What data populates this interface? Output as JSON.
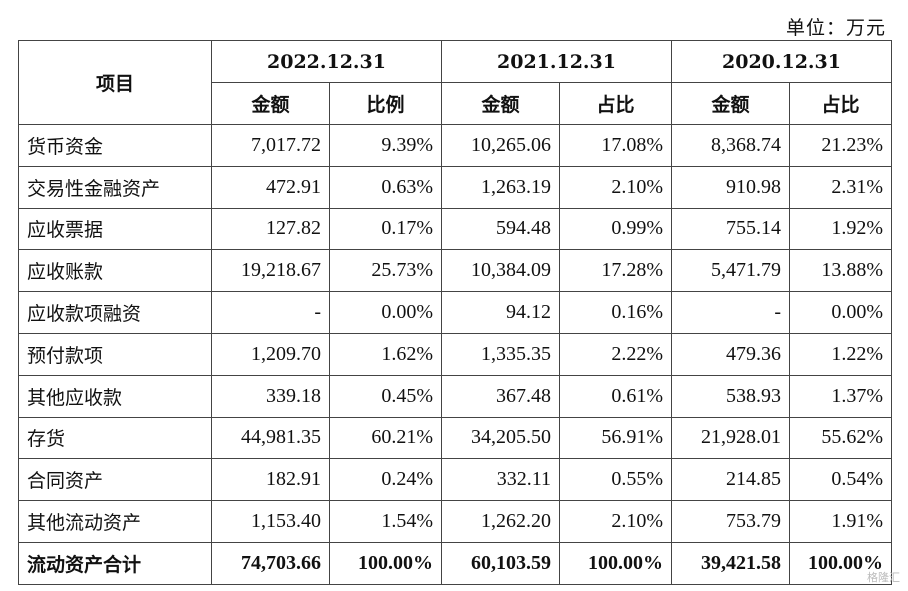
{
  "unit_label": "单位：万元",
  "header": {
    "item": "项目",
    "periods": [
      "2022.12.31",
      "2021.12.31",
      "2020.12.31"
    ],
    "sub": [
      "金额",
      "比例",
      "金额",
      "占比",
      "金额",
      "占比"
    ]
  },
  "rows": [
    {
      "name": "货币资金",
      "v": [
        "7,017.72",
        "9.39%",
        "10,265.06",
        "17.08%",
        "8,368.74",
        "21.23%"
      ]
    },
    {
      "name": "交易性金融资产",
      "v": [
        "472.91",
        "0.63%",
        "1,263.19",
        "2.10%",
        "910.98",
        "2.31%"
      ]
    },
    {
      "name": "应收票据",
      "v": [
        "127.82",
        "0.17%",
        "594.48",
        "0.99%",
        "755.14",
        "1.92%"
      ]
    },
    {
      "name": "应收账款",
      "v": [
        "19,218.67",
        "25.73%",
        "10,384.09",
        "17.28%",
        "5,471.79",
        "13.88%"
      ]
    },
    {
      "name": "应收款项融资",
      "v": [
        "-",
        "0.00%",
        "94.12",
        "0.16%",
        "-",
        "0.00%"
      ]
    },
    {
      "name": "预付款项",
      "v": [
        "1,209.70",
        "1.62%",
        "1,335.35",
        "2.22%",
        "479.36",
        "1.22%"
      ]
    },
    {
      "name": "其他应收款",
      "v": [
        "339.18",
        "0.45%",
        "367.48",
        "0.61%",
        "538.93",
        "1.37%"
      ]
    },
    {
      "name": "存货",
      "v": [
        "44,981.35",
        "60.21%",
        "34,205.50",
        "56.91%",
        "21,928.01",
        "55.62%"
      ]
    },
    {
      "name": "合同资产",
      "v": [
        "182.91",
        "0.24%",
        "332.11",
        "0.55%",
        "214.85",
        "0.54%"
      ]
    },
    {
      "name": "其他流动资产",
      "v": [
        "1,153.40",
        "1.54%",
        "1,262.20",
        "2.10%",
        "753.79",
        "1.91%"
      ]
    }
  ],
  "total": {
    "name": "流动资产合计",
    "v": [
      "74,703.66",
      "100.00%",
      "60,103.59",
      "100.00%",
      "39,421.58",
      "100.00%"
    ]
  },
  "watermark": "格隆汇"
}
